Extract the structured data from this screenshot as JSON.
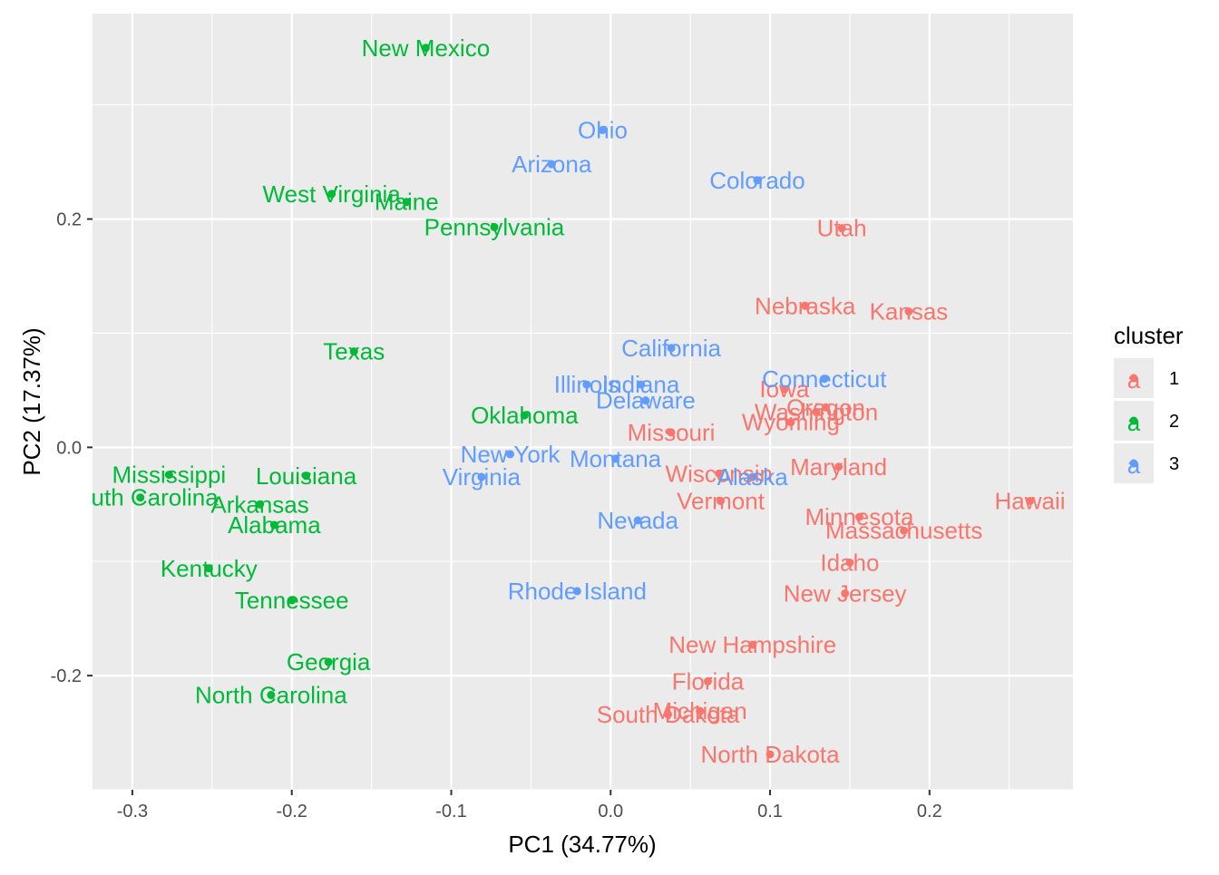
{
  "chart_data": {
    "type": "scatter",
    "title": "",
    "xlabel": "PC1 (34.77%)",
    "ylabel": "PC2 (17.37%)",
    "xlim": [
      -0.325,
      0.29
    ],
    "ylim": [
      -0.3,
      0.38
    ],
    "xticks": [
      -0.3,
      -0.2,
      -0.1,
      0.0,
      0.1,
      0.2
    ],
    "xtick_labels": [
      "-0.3",
      "-0.2",
      "-0.1",
      "0.0",
      "0.1",
      "0.2"
    ],
    "yticks": [
      -0.2,
      0.0,
      0.2
    ],
    "ytick_labels": [
      "-0.2",
      "0.0",
      "0.2"
    ],
    "grid": true,
    "legend": {
      "title": "cluster",
      "position": "right",
      "entries": [
        {
          "label": "1",
          "glyph": "a",
          "color": "#F8766D"
        },
        {
          "label": "2",
          "glyph": "a",
          "color": "#00BA38"
        },
        {
          "label": "3",
          "glyph": "a",
          "color": "#619CFF"
        }
      ]
    },
    "series": [
      {
        "name": "1",
        "color": "#F8766D",
        "points": [
          {
            "label": "Utah",
            "x": 0.145,
            "y": 0.192
          },
          {
            "label": "Nebraska",
            "x": 0.122,
            "y": 0.124
          },
          {
            "label": "Kansas",
            "x": 0.187,
            "y": 0.119
          },
          {
            "label": "Iowa",
            "x": 0.109,
            "y": 0.051
          },
          {
            "label": "Oregon",
            "x": 0.135,
            "y": 0.035
          },
          {
            "label": "Washington",
            "x": 0.129,
            "y": 0.031
          },
          {
            "label": "Wyoming",
            "x": 0.113,
            "y": 0.022
          },
          {
            "label": "Missouri",
            "x": 0.038,
            "y": 0.013
          },
          {
            "label": "Maryland",
            "x": 0.143,
            "y": -0.017
          },
          {
            "label": "Wisconsin",
            "x": 0.068,
            "y": -0.023
          },
          {
            "label": "Vermont",
            "x": 0.069,
            "y": -0.047
          },
          {
            "label": "Hawaii",
            "x": 0.263,
            "y": -0.047
          },
          {
            "label": "Minnesota",
            "x": 0.156,
            "y": -0.061
          },
          {
            "label": "Massachusetts",
            "x": 0.184,
            "y": -0.073
          },
          {
            "label": "Idaho",
            "x": 0.15,
            "y": -0.101
          },
          {
            "label": "New Jersey",
            "x": 0.147,
            "y": -0.128
          },
          {
            "label": "New Hampshire",
            "x": 0.089,
            "y": -0.173
          },
          {
            "label": "Florida",
            "x": 0.061,
            "y": -0.205
          },
          {
            "label": "Michigan",
            "x": 0.056,
            "y": -0.231
          },
          {
            "label": "South Dakota",
            "x": 0.036,
            "y": -0.234
          },
          {
            "label": "North Dakota",
            "x": 0.1,
            "y": -0.269
          }
        ]
      },
      {
        "name": "2",
        "color": "#00BA38",
        "points": [
          {
            "label": "New Mexico",
            "x": -0.116,
            "y": 0.35
          },
          {
            "label": "West Virginia",
            "x": -0.175,
            "y": 0.222
          },
          {
            "label": "Maine",
            "x": -0.128,
            "y": 0.215
          },
          {
            "label": "Pennsylvania",
            "x": -0.073,
            "y": 0.193
          },
          {
            "label": "Texas",
            "x": -0.161,
            "y": 0.084
          },
          {
            "label": "Oklahoma",
            "x": -0.054,
            "y": 0.028
          },
          {
            "label": "Mississippi",
            "x": -0.277,
            "y": -0.024
          },
          {
            "label": "Louisiana",
            "x": -0.191,
            "y": -0.025
          },
          {
            "label": "South Carolina",
            "x": -0.295,
            "y": -0.044
          },
          {
            "label": "Arkansas",
            "x": -0.22,
            "y": -0.05
          },
          {
            "label": "Alabama",
            "x": -0.211,
            "y": -0.068
          },
          {
            "label": "Kentucky",
            "x": -0.252,
            "y": -0.106
          },
          {
            "label": "Tennessee",
            "x": -0.2,
            "y": -0.134
          },
          {
            "label": "Georgia",
            "x": -0.177,
            "y": -0.188
          },
          {
            "label": "North Carolina",
            "x": -0.213,
            "y": -0.217
          }
        ]
      },
      {
        "name": "3",
        "color": "#619CFF",
        "points": [
          {
            "label": "Ohio",
            "x": -0.005,
            "y": 0.278
          },
          {
            "label": "Arizona",
            "x": -0.037,
            "y": 0.248
          },
          {
            "label": "Colorado",
            "x": 0.092,
            "y": 0.234
          },
          {
            "label": "California",
            "x": 0.038,
            "y": 0.087
          },
          {
            "label": "Connecticut",
            "x": 0.134,
            "y": 0.06
          },
          {
            "label": "Illinois",
            "x": -0.015,
            "y": 0.055
          },
          {
            "label": "Indiana",
            "x": 0.019,
            "y": 0.055
          },
          {
            "label": "Delaware",
            "x": 0.022,
            "y": 0.041
          },
          {
            "label": "New York",
            "x": -0.063,
            "y": -0.006
          },
          {
            "label": "Montana",
            "x": 0.003,
            "y": -0.01
          },
          {
            "label": "Virginia",
            "x": -0.081,
            "y": -0.026
          },
          {
            "label": "Alaska",
            "x": 0.089,
            "y": -0.026
          },
          {
            "label": "Nevada",
            "x": 0.017,
            "y": -0.064
          },
          {
            "label": "Rhode Island",
            "x": -0.021,
            "y": -0.126
          }
        ]
      }
    ]
  }
}
